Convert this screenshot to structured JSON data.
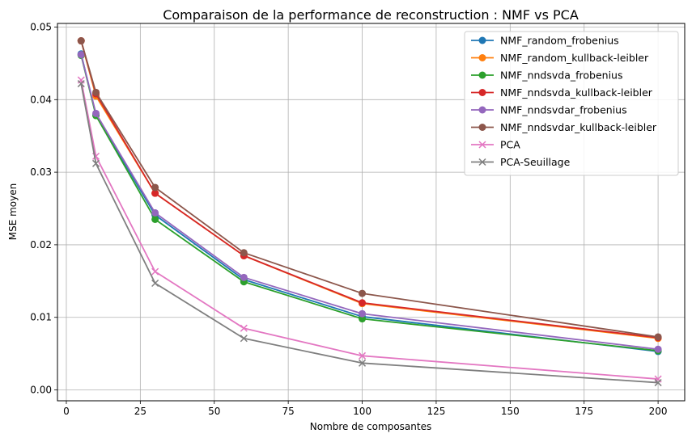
{
  "chart_data": {
    "type": "line",
    "title": "Comparaison de la performance de reconstruction : NMF vs PCA",
    "xlabel": "Nombre de composantes",
    "ylabel": "MSE moyen",
    "xlim": [
      -3,
      209
    ],
    "ylim": [
      -0.0015,
      0.0505
    ],
    "x_ticks": [
      0,
      25,
      50,
      75,
      100,
      125,
      150,
      175,
      200
    ],
    "y_ticks": [
      0.0,
      0.01,
      0.02,
      0.03,
      0.04,
      0.05
    ],
    "y_tick_labels": [
      "0.00",
      "0.01",
      "0.02",
      "0.03",
      "0.04",
      "0.05"
    ],
    "grid": true,
    "legend_position": "top-right",
    "x": [
      5,
      10,
      30,
      60,
      100,
      200
    ],
    "series": [
      {
        "name": "NMF_random_frobenius",
        "color": "#1f77b4",
        "marker": "circle",
        "values": [
          0.0463,
          0.0379,
          0.0241,
          0.0152,
          0.0101,
          0.0053
        ]
      },
      {
        "name": "NMF_random_kullback-leibler",
        "color": "#ff7f0e",
        "marker": "circle",
        "values": [
          0.0481,
          0.0405,
          0.0271,
          0.0185,
          0.0119,
          0.0071
        ]
      },
      {
        "name": "NMF_nndsvda_frobenius",
        "color": "#2ca02c",
        "marker": "circle",
        "values": [
          0.0461,
          0.0378,
          0.0235,
          0.0149,
          0.0098,
          0.0054
        ]
      },
      {
        "name": "NMF_nndsvda_kullback-leibler",
        "color": "#d62728",
        "marker": "circle",
        "values": [
          0.0481,
          0.0408,
          0.0271,
          0.0185,
          0.012,
          0.0072
        ]
      },
      {
        "name": "NMF_nndsvdar_frobenius",
        "color": "#9467bd",
        "marker": "circle",
        "values": [
          0.0462,
          0.0381,
          0.0244,
          0.0155,
          0.0105,
          0.0056
        ]
      },
      {
        "name": "NMF_nndsvdar_kullback-leibler",
        "color": "#8c564b",
        "marker": "circle",
        "values": [
          0.0481,
          0.041,
          0.0279,
          0.0189,
          0.0133,
          0.0073
        ]
      },
      {
        "name": "PCA",
        "color": "#e377c2",
        "marker": "x",
        "values": [
          0.0427,
          0.0322,
          0.0163,
          0.0085,
          0.0047,
          0.0015
        ]
      },
      {
        "name": "PCA-Seuillage",
        "color": "#7f7f7f",
        "marker": "x",
        "values": [
          0.0422,
          0.0312,
          0.0147,
          0.0071,
          0.0037,
          0.001
        ]
      }
    ]
  }
}
